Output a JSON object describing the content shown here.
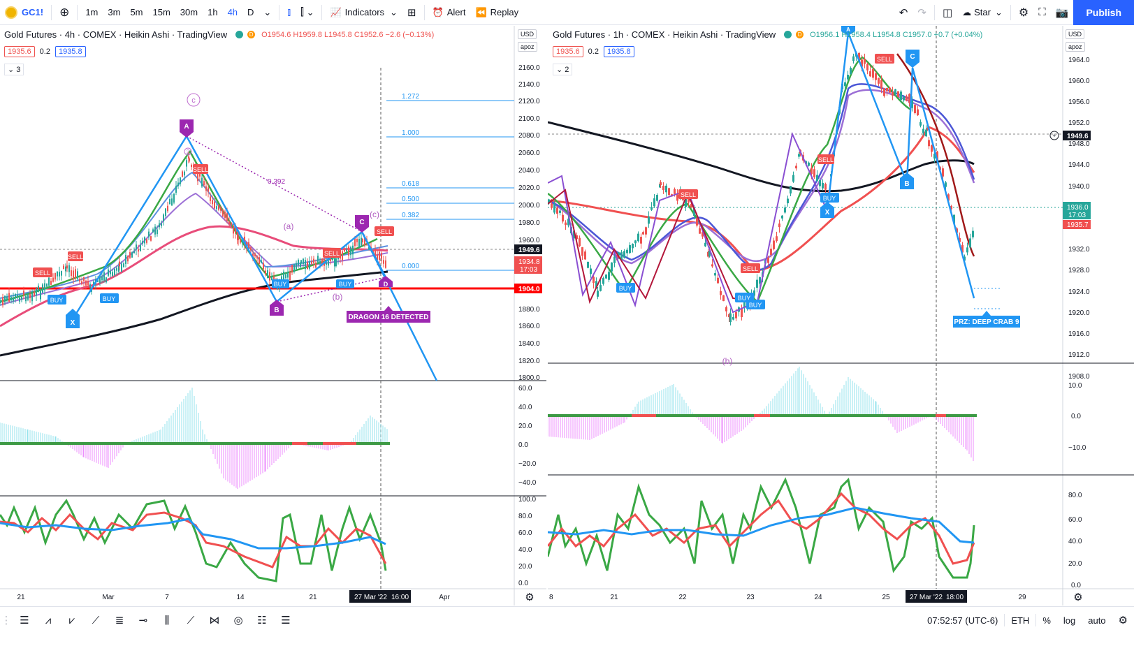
{
  "toolbar": {
    "symbol": "GC1!",
    "intervals": [
      "1m",
      "3m",
      "5m",
      "15m",
      "30m",
      "1h",
      "4h",
      "D"
    ],
    "active_interval": "4h",
    "indicators_label": "Indicators",
    "alert_label": "Alert",
    "replay_label": "Replay",
    "star_label": "Star",
    "publish_label": "Publish"
  },
  "left": {
    "title": "Gold Futures · 4h · COMEX · Heikin Ashi · TradingView",
    "ohlc_o": "O1954.6",
    "ohlc_h": "H1959.8",
    "ohlc_l": "L1945.8",
    "ohlc_c": "C1952.6",
    "ohlc_change": "−2.6 (−0.13%)",
    "sell_price": "1935.6",
    "spread": "0.2",
    "buy_price": "1935.8",
    "collapse": "3",
    "currency": "USD",
    "scale_tag": "apoz",
    "price_ticks": [
      "2160.0",
      "2140.0",
      "2120.0",
      "2100.0",
      "2080.0",
      "2060.0",
      "2040.0",
      "2020.0",
      "2000.0",
      "1980.0",
      "1960.0",
      "1949.6",
      "1934.8",
      "17:03",
      "1904.0",
      "1880.0",
      "1860.0",
      "1840.0",
      "1820.0",
      "1800.0"
    ],
    "fib_levels": [
      "1.272",
      "1.000",
      "0.618",
      "0.500",
      "0.382",
      "0.000"
    ],
    "xabcd_labels": [
      "X",
      "A",
      "B",
      "C",
      "D"
    ],
    "wave_labels": [
      "c",
      "(a)",
      "(b)",
      "(c)",
      "2"
    ],
    "retrace_label": "0.392",
    "signal_labels": [
      "SELL",
      "SELL",
      "SELL",
      "SELL",
      "SELL",
      "BUY",
      "BUY",
      "BUY",
      "BUY"
    ],
    "dragon_label": "DRAGON 16 DETECTED",
    "macd_ticks": [
      "60.0",
      "40.0",
      "20.0",
      "0.0",
      "−20.0",
      "−40.0"
    ],
    "stoch_ticks": [
      "100.0",
      "80.0",
      "60.0",
      "40.0",
      "20.0",
      "0.0"
    ],
    "time_labels": [
      "21",
      "Mar",
      "7",
      "14",
      "21",
      "Apr"
    ],
    "crosshair_time": "27 Mar '22",
    "crosshair_clock": "16:00"
  },
  "right": {
    "title": "Gold Futures · 1h · COMEX · Heikin Ashi · TradingView",
    "ohlc_o": "O1956.1",
    "ohlc_h": "H1958.4",
    "ohlc_l": "L1954.8",
    "ohlc_c": "C1957.0",
    "ohlc_change": "+0.7 (+0.04%)",
    "sell_price": "1935.6",
    "spread": "0.2",
    "buy_price": "1935.8",
    "collapse": "2",
    "currency": "USD",
    "scale_tag": "apoz",
    "price_ticks": [
      "1964.0",
      "1960.0",
      "1956.0",
      "1952.0",
      "1949.6",
      "1948.0",
      "1944.0",
      "1940.0",
      "1936.0",
      "17:03",
      "1935.7",
      "1932.0",
      "1928.0",
      "1924.0",
      "1920.0",
      "1916.0",
      "1912.0",
      "1908.0"
    ],
    "xabcd_labels": [
      "X",
      "A",
      "B",
      "C"
    ],
    "signal_labels": [
      "SELL",
      "SELL",
      "SELL",
      "SELL",
      "BUY",
      "BUY",
      "BUY",
      "BUY"
    ],
    "wave_label": "(b)",
    "prz_label": "PRZ: DEEP CRAB 9",
    "macd_ticks": [
      "10.0",
      "0.0",
      "−10.0"
    ],
    "stoch_ticks": [
      "80.0",
      "60.0",
      "40.0",
      "20.0",
      "0.0"
    ],
    "time_labels": [
      "8",
      "21",
      "22",
      "23",
      "24",
      "25",
      "29"
    ],
    "crosshair_time": "27 Mar '22",
    "crosshair_clock": "18:00"
  },
  "status": {
    "clock": "07:52:57 (UTC-6)",
    "session": "ETH",
    "percent": "%",
    "log": "log",
    "auto": "auto"
  },
  "colors": {
    "accent": "#2962ff",
    "up": "#26a69a",
    "down": "#ef5350",
    "pattern": "#9c27b0",
    "harmonic_line": "#2196f3"
  }
}
